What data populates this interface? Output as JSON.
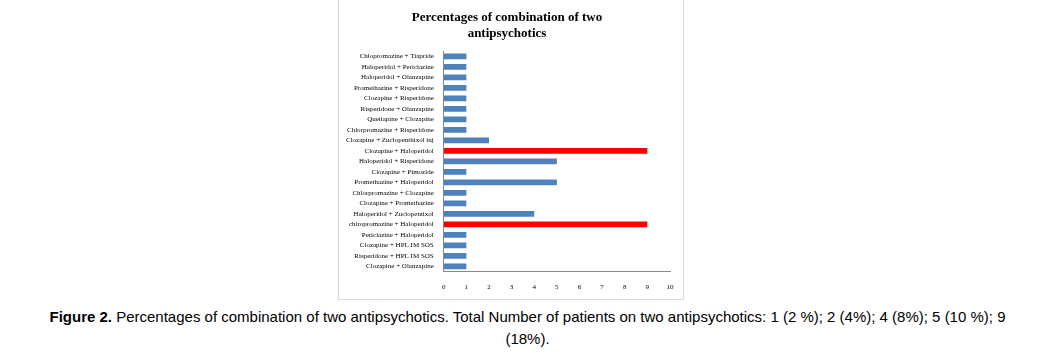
{
  "chart_data": {
    "type": "bar",
    "orientation": "horizontal",
    "title": [
      "Percentages of combination of two",
      "antipsychotics"
    ],
    "categories": [
      "Chlopromazine + Tiapride",
      "Haloperidol + Periciazine",
      "Haloperidol + Olanzapine",
      "Promethazine + Risperidone",
      "Clozapine + Risperidone",
      "Risperidone + Olanzapine",
      "Quetiapine + Clozapine",
      "Chlorpromazine + Risperidone",
      "Clozapine + Zuclopenthixol inj",
      "Clozapine + Haloperidol",
      "Haloperidol + Risperidone",
      "Clozapine + Pimozide",
      "Promethazine + Haloperidol",
      "Chlorpromazine + Clozapine",
      "Clozapine + Promethazine",
      "Haloperidol + Zuclopentixol",
      "chlropromazine + Haloperidol",
      "Periciazine + Haloperidol",
      "Clozapine + HPL IM SOS",
      "Risperidone + HPL IM SOS",
      "Clozapine + Olanzapine"
    ],
    "values": [
      1,
      1,
      1,
      1,
      1,
      1,
      1,
      1,
      2,
      9,
      5,
      1,
      5,
      1,
      1,
      4,
      9,
      1,
      1,
      1,
      1
    ],
    "colors": [
      "#4f81bd",
      "#4f81bd",
      "#4f81bd",
      "#4f81bd",
      "#4f81bd",
      "#4f81bd",
      "#4f81bd",
      "#4f81bd",
      "#4f81bd",
      "#ff0000",
      "#4f81bd",
      "#4f81bd",
      "#4f81bd",
      "#4f81bd",
      "#4f81bd",
      "#4f81bd",
      "#ff0000",
      "#4f81bd",
      "#4f81bd",
      "#4f81bd",
      "#4f81bd"
    ],
    "xlim": [
      0,
      10
    ],
    "xticks": [
      0,
      1,
      2,
      3,
      4,
      5,
      6,
      7,
      8,
      9,
      10
    ],
    "grid": false,
    "caption_label": "Figure 2.",
    "caption": "Percentages of combination of two antipsychotics. Total Number of patients on two antipsychotics: 1 (2 %); 2 (4%); 4 (8%); 5 (10 %); 9 (18%)."
  }
}
